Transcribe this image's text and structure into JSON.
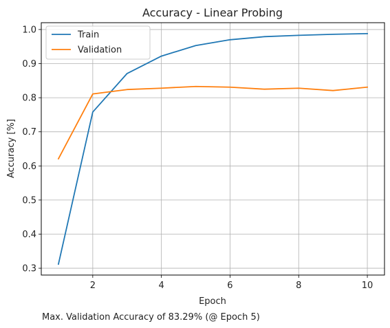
{
  "chart_data": {
    "type": "line",
    "title": "Accuracy - Linear Probing",
    "xlabel": "Epoch",
    "ylabel": "Accuracy [%]",
    "x": [
      1,
      2,
      3,
      4,
      5,
      6,
      7,
      8,
      9,
      10
    ],
    "xlim": [
      0.5,
      10.5
    ],
    "ylim": [
      0.28,
      1.02
    ],
    "xticks": [
      2,
      4,
      6,
      8,
      10
    ],
    "yticks": [
      0.3,
      0.4,
      0.5,
      0.6,
      0.7,
      0.8,
      0.9,
      1.0
    ],
    "xtick_labels": [
      "2",
      "4",
      "6",
      "8",
      "10"
    ],
    "ytick_labels": [
      "0.3",
      "0.4",
      "0.5",
      "0.6",
      "0.7",
      "0.8",
      "0.9",
      "1.0"
    ],
    "grid": true,
    "legend_position": "top-left",
    "series": [
      {
        "name": "Train",
        "color": "#1f77b4",
        "values": [
          0.312,
          0.758,
          0.871,
          0.922,
          0.953,
          0.97,
          0.979,
          0.983,
          0.986,
          0.988
        ]
      },
      {
        "name": "Validation",
        "color": "#ff7f0e",
        "values": [
          0.621,
          0.811,
          0.824,
          0.828,
          0.833,
          0.831,
          0.825,
          0.828,
          0.821,
          0.831
        ]
      }
    ],
    "annotation": "Max. Validation Accuracy of 83.29% (@ Epoch 5)"
  }
}
